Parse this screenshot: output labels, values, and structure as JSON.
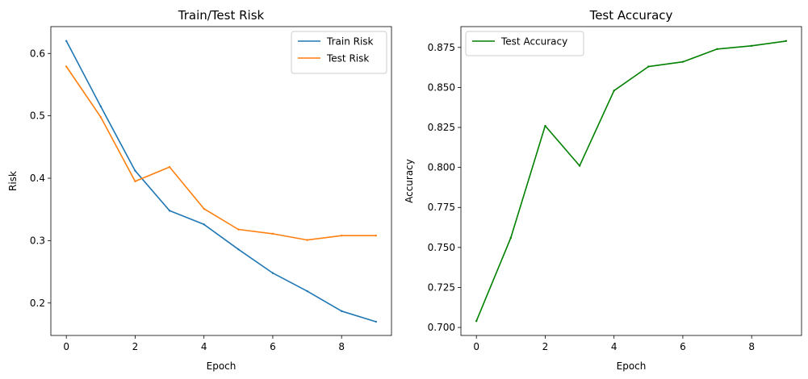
{
  "chart_data": [
    {
      "type": "line",
      "title": "Train/Test Risk",
      "xlabel": "Epoch",
      "ylabel": "Risk",
      "xlim": [
        -0.45,
        9.45
      ],
      "ylim": [
        0.148,
        0.643
      ],
      "xticks": [
        0,
        2,
        4,
        6,
        8
      ],
      "yticks": [
        0.2,
        0.3,
        0.4,
        0.5,
        0.6
      ],
      "ytick_labels": [
        "0.2",
        "0.3",
        "0.4",
        "0.5",
        "0.6"
      ],
      "grid": false,
      "legend": "upper right",
      "x": [
        0,
        1,
        2,
        3,
        4,
        5,
        6,
        7,
        8,
        9
      ],
      "series": [
        {
          "name": "Train Risk",
          "color": "#1f77b4",
          "values": [
            0.62,
            0.515,
            0.412,
            0.348,
            0.326,
            0.286,
            0.248,
            0.219,
            0.187,
            0.17
          ]
        },
        {
          "name": "Test Risk",
          "color": "#ff7f0e",
          "values": [
            0.579,
            0.498,
            0.395,
            0.418,
            0.351,
            0.318,
            0.311,
            0.301,
            0.308,
            0.308
          ]
        }
      ]
    },
    {
      "type": "line",
      "title": "Test Accuracy",
      "xlabel": "Epoch",
      "ylabel": "Accuracy",
      "xlim": [
        -0.45,
        9.45
      ],
      "ylim": [
        0.695,
        0.888
      ],
      "xticks": [
        0,
        2,
        4,
        6,
        8
      ],
      "yticks": [
        0.7,
        0.725,
        0.75,
        0.775,
        0.8,
        0.825,
        0.85,
        0.875
      ],
      "ytick_labels": [
        "0.700",
        "0.725",
        "0.750",
        "0.775",
        "0.800",
        "0.825",
        "0.850",
        "0.875"
      ],
      "grid": false,
      "legend": "upper left",
      "x": [
        0,
        1,
        2,
        3,
        4,
        5,
        6,
        7,
        8,
        9
      ],
      "series": [
        {
          "name": "Test Accuracy",
          "color": "#008000",
          "values": [
            0.704,
            0.756,
            0.826,
            0.801,
            0.848,
            0.863,
            0.866,
            0.874,
            0.876,
            0.879
          ]
        }
      ]
    }
  ]
}
